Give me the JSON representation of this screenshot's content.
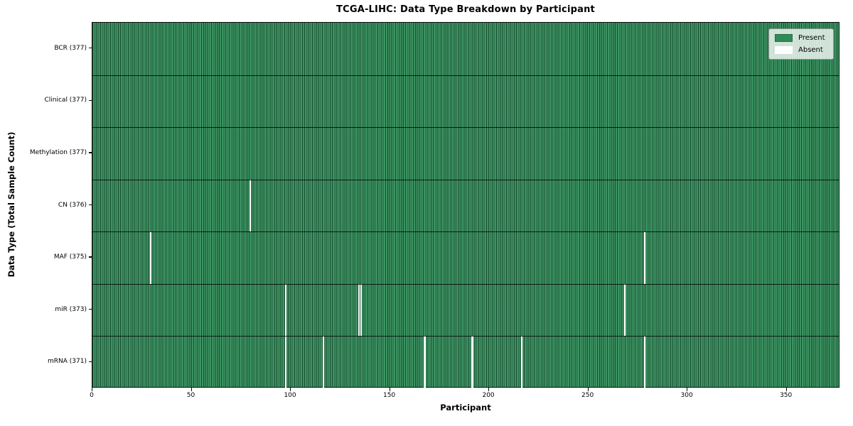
{
  "chart_data": {
    "type": "heatmap",
    "title": "TCGA-LIHC: Data Type Breakdown by Participant",
    "xlabel": "Participant",
    "ylabel": "Data Type (Total Sample Count)",
    "n_participants": 377,
    "xlim": [
      0,
      377
    ],
    "x_ticks": [
      0,
      50,
      100,
      150,
      200,
      250,
      300,
      350
    ],
    "grid": "cell-edges",
    "legend_position": "upper-right",
    "legend": [
      {
        "label": "Present",
        "color": "#2e8b57"
      },
      {
        "label": "Absent",
        "color": "#ffffff"
      }
    ],
    "rows": [
      {
        "label": "BCR (377)",
        "data_type": "BCR",
        "present_count": 377,
        "absent_count": 0,
        "absent_participants": []
      },
      {
        "label": "Clinical (377)",
        "data_type": "Clinical",
        "present_count": 377,
        "absent_count": 0,
        "absent_participants": []
      },
      {
        "label": "Methylation (377)",
        "data_type": "Methylation",
        "present_count": 377,
        "absent_count": 0,
        "absent_participants": []
      },
      {
        "label": "CN (376)",
        "data_type": "CN",
        "present_count": 376,
        "absent_count": 1,
        "absent_participants": [
          79
        ]
      },
      {
        "label": "MAF (375)",
        "data_type": "MAF",
        "present_count": 375,
        "absent_count": 2,
        "absent_participants": [
          29,
          278
        ]
      },
      {
        "label": "miR (373)",
        "data_type": "miR",
        "present_count": 373,
        "absent_count": 4,
        "absent_participants": [
          97,
          134,
          135,
          268
        ]
      },
      {
        "label": "mRNA (371)",
        "data_type": "mRNA",
        "present_count": 371,
        "absent_count": 6,
        "absent_participants": [
          97,
          116,
          167,
          191,
          216,
          278
        ]
      }
    ]
  }
}
